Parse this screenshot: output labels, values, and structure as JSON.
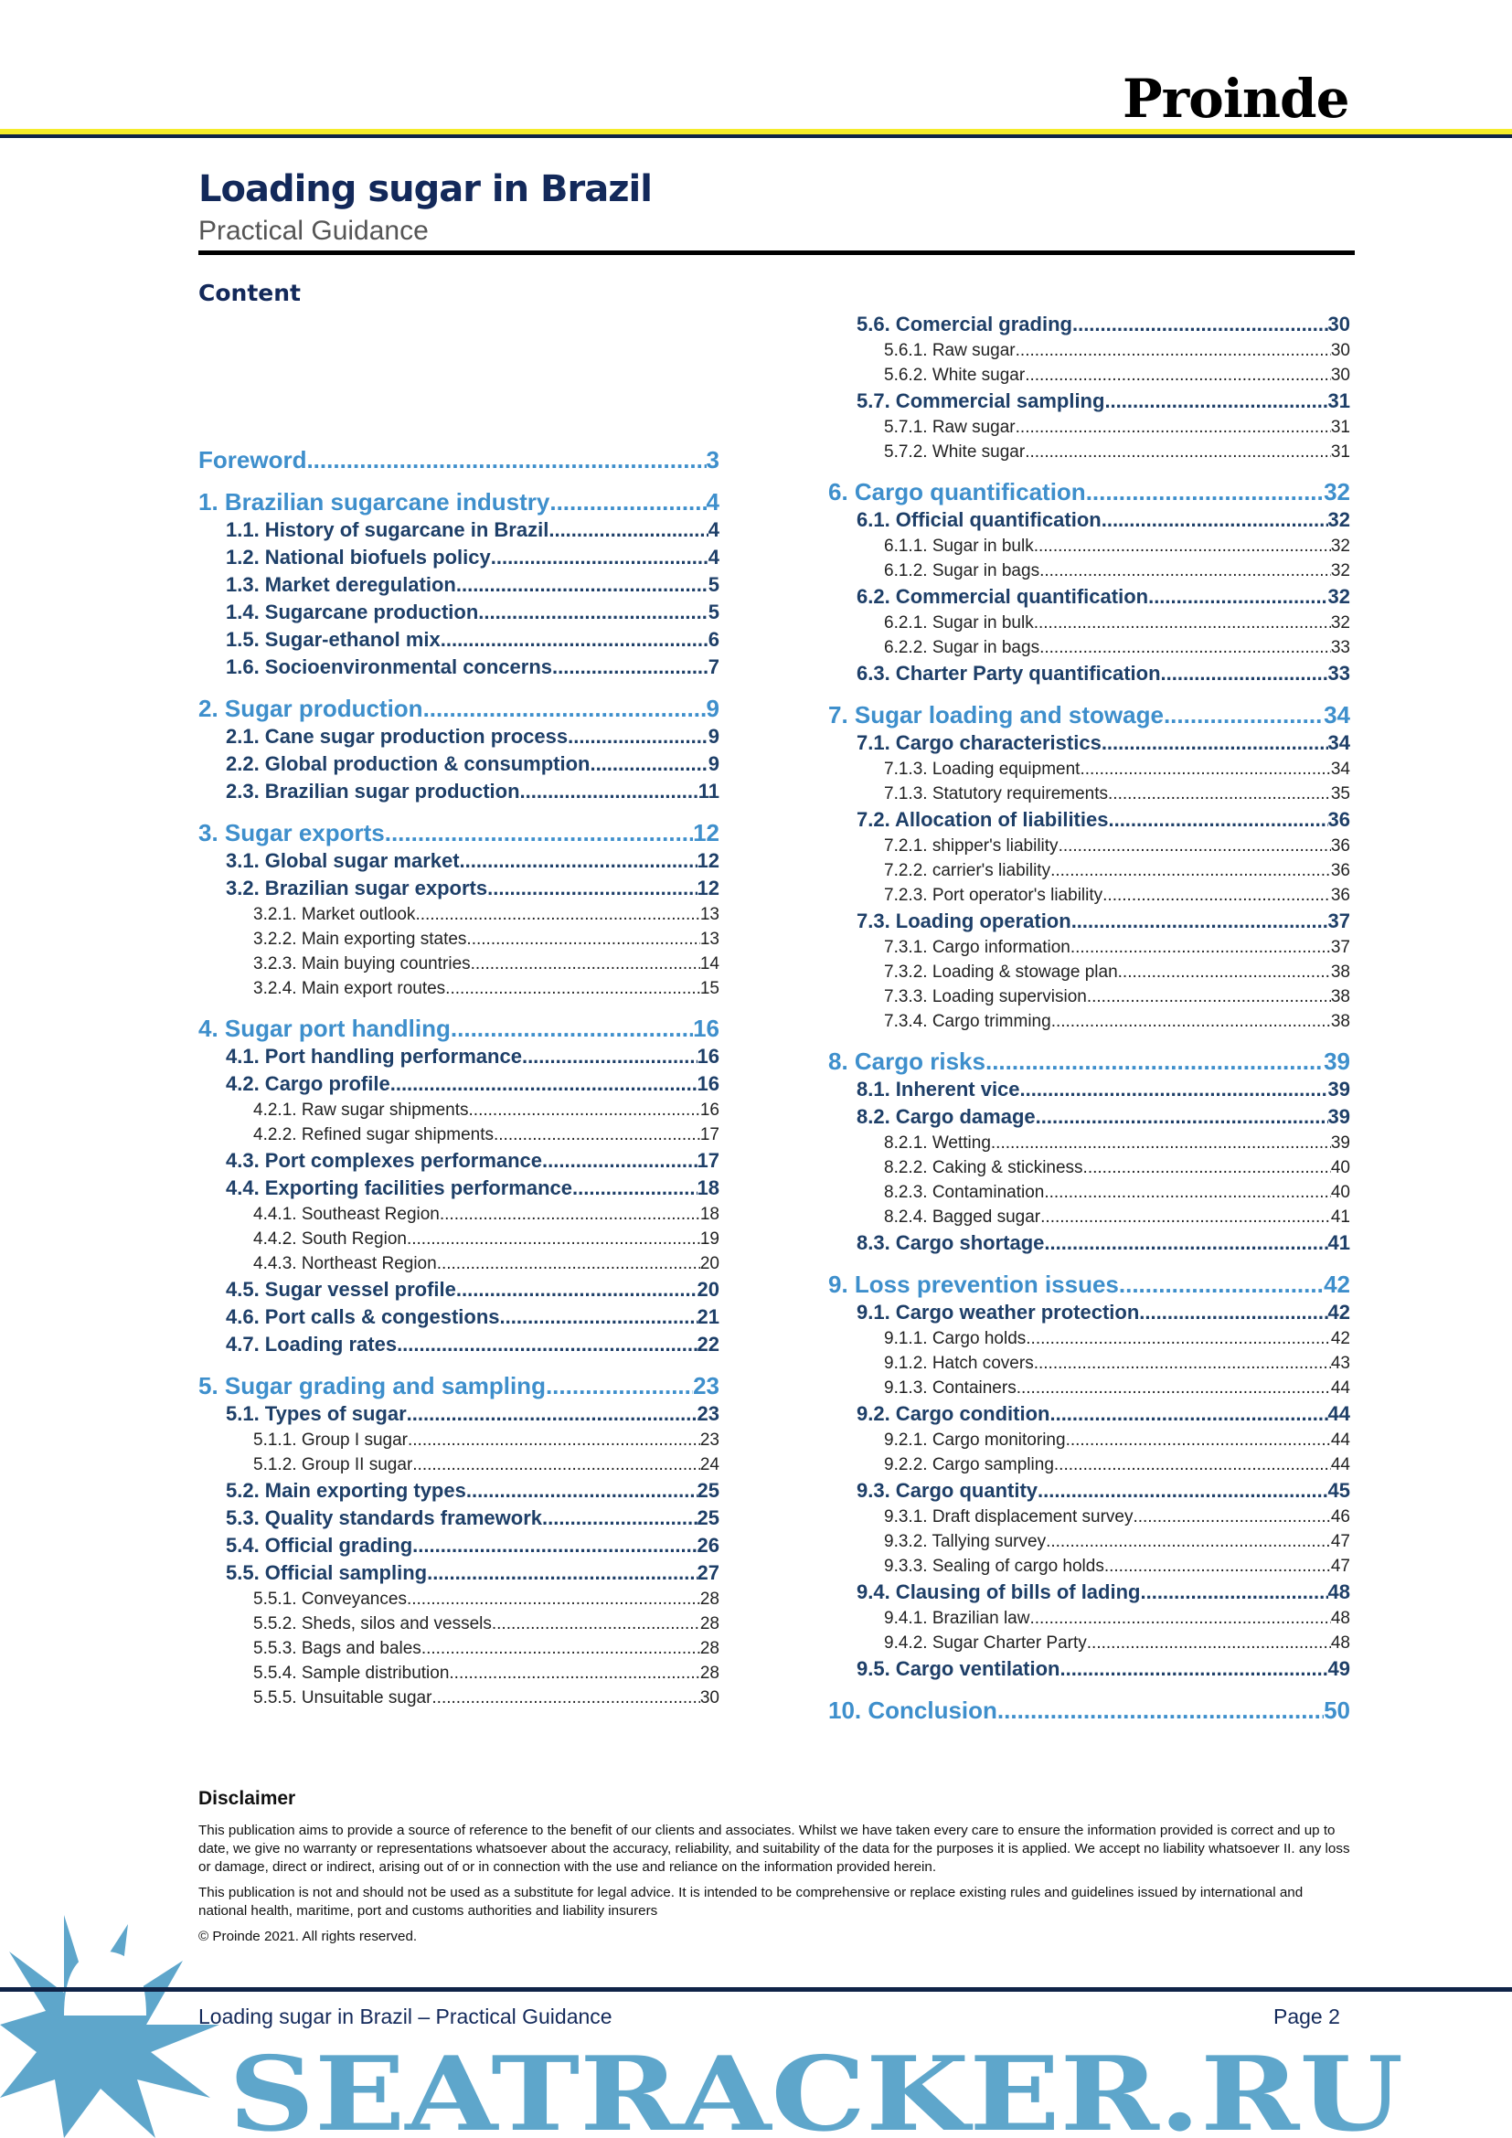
{
  "header": {
    "logo": "Proinde",
    "title": "Loading sugar in Brazil",
    "subtitle": "Practical Guidance",
    "section_heading": "Content"
  },
  "colors": {
    "accent_light_blue": "#3e8fcc",
    "navy": "#13295a",
    "yellow": "#f5ec2a",
    "watermark_blue": "#5ea6cb"
  },
  "toc_left": [
    {
      "level": 1,
      "label": "Foreword",
      "page": "3"
    },
    {
      "level": 1,
      "label": "1. Brazilian sugarcane industry",
      "page": "4",
      "gap": true
    },
    {
      "level": 2,
      "label": "1.1. History of sugarcane in Brazil",
      "page": "4"
    },
    {
      "level": 2,
      "label": "1.2. National biofuels policy",
      "page": "4"
    },
    {
      "level": 2,
      "label": "1.3. Market deregulation",
      "page": "5"
    },
    {
      "level": 2,
      "label": "1.4. Sugarcane production",
      "page": "5"
    },
    {
      "level": 2,
      "label": "1.5. Sugar-ethanol mix",
      "page": "6"
    },
    {
      "level": 2,
      "label": "1.6. Socioenvironmental concerns",
      "page": "7"
    },
    {
      "level": 1,
      "label": "2. Sugar production",
      "page": "9",
      "gap": true
    },
    {
      "level": 2,
      "label": "2.1. Cane sugar production process",
      "page": "9"
    },
    {
      "level": 2,
      "label": "2.2. Global production & consumption",
      "page": "9"
    },
    {
      "level": 2,
      "label": "2.3. Brazilian sugar production",
      "page": "11"
    },
    {
      "level": 1,
      "label": "3. Sugar exports",
      "page": "12",
      "gap": true
    },
    {
      "level": 2,
      "label": "3.1. Global sugar market",
      "page": "12"
    },
    {
      "level": 2,
      "label": "3.2. Brazilian sugar exports",
      "page": "12"
    },
    {
      "level": 3,
      "label": "3.2.1. Market outlook",
      "page": "13"
    },
    {
      "level": 3,
      "label": "3.2.2. Main exporting states",
      "page": "13"
    },
    {
      "level": 3,
      "label": "3.2.3. Main buying countries",
      "page": "14"
    },
    {
      "level": 3,
      "label": "3.2.4. Main export routes",
      "page": "15"
    },
    {
      "level": 1,
      "label": "4. Sugar port handling",
      "page": "16",
      "gap": true
    },
    {
      "level": 2,
      "label": "4.1. Port handling performance",
      "page": "16"
    },
    {
      "level": 2,
      "label": "4.2. Cargo profile",
      "page": "16"
    },
    {
      "level": 3,
      "label": "4.2.1. Raw sugar shipments",
      "page": "16"
    },
    {
      "level": 3,
      "label": "4.2.2. Refined sugar shipments",
      "page": "17"
    },
    {
      "level": 2,
      "label": "4.3. Port complexes performance",
      "page": "17"
    },
    {
      "level": 2,
      "label": "4.4. Exporting facilities performance",
      "page": "18"
    },
    {
      "level": 3,
      "label": "4.4.1. Southeast Region",
      "page": "18"
    },
    {
      "level": 3,
      "label": "4.4.2. South Region",
      "page": "19"
    },
    {
      "level": 3,
      "label": "4.4.3. Northeast Region",
      "page": "20"
    },
    {
      "level": 2,
      "label": "4.5. Sugar vessel profile",
      "page": "20"
    },
    {
      "level": 2,
      "label": "4.6. Port calls & congestions",
      "page": "21"
    },
    {
      "level": 2,
      "label": "4.7. Loading rates",
      "page": "22"
    },
    {
      "level": 1,
      "label": "5. Sugar grading and sampling",
      "page": "23",
      "gap": true
    },
    {
      "level": 2,
      "label": "5.1. Types of sugar",
      "page": "23"
    },
    {
      "level": 3,
      "label": "5.1.1. Group I sugar",
      "page": "23"
    },
    {
      "level": 3,
      "label": "5.1.2. Group II sugar",
      "page": "24"
    },
    {
      "level": 2,
      "label": "5.2. Main exporting types",
      "page": "25"
    },
    {
      "level": 2,
      "label": "5.3. Quality standards framework",
      "page": "25"
    },
    {
      "level": 2,
      "label": "5.4. Official grading",
      "page": "26"
    },
    {
      "level": 2,
      "label": "5.5. Official sampling",
      "page": "27"
    },
    {
      "level": 3,
      "label": "5.5.1. Conveyances",
      "page": "28"
    },
    {
      "level": 3,
      "label": "5.5.2. Sheds, silos and vessels",
      "page": "28"
    },
    {
      "level": 3,
      "label": "5.5.3. Bags and bales",
      "page": "28"
    },
    {
      "level": 3,
      "label": "5.5.4. Sample distribution",
      "page": "28"
    },
    {
      "level": 3,
      "label": "5.5.5. Unsuitable sugar",
      "page": "30"
    }
  ],
  "toc_right": [
    {
      "level": 2,
      "label": "5.6. Comercial grading",
      "page": "30"
    },
    {
      "level": 3,
      "label": "5.6.1. Raw sugar",
      "page": "30"
    },
    {
      "level": 3,
      "label": "5.6.2. White sugar",
      "page": "30"
    },
    {
      "level": 2,
      "label": "5.7. Commercial sampling",
      "page": "31"
    },
    {
      "level": 3,
      "label": "5.7.1. Raw sugar",
      "page": "31"
    },
    {
      "level": 3,
      "label": "5.7.2. White sugar",
      "page": "31"
    },
    {
      "level": 1,
      "label": "6. Cargo quantification",
      "page": "32",
      "gap": true
    },
    {
      "level": 2,
      "label": "6.1. Official quantification",
      "page": "32"
    },
    {
      "level": 3,
      "label": "6.1.1. Sugar in bulk",
      "page": "32"
    },
    {
      "level": 3,
      "label": "6.1.2. Sugar in bags",
      "page": "32"
    },
    {
      "level": 2,
      "label": "6.2. Commercial quantification",
      "page": "32"
    },
    {
      "level": 3,
      "label": "6.2.1. Sugar in bulk",
      "page": "32"
    },
    {
      "level": 3,
      "label": "6.2.2. Sugar in bags",
      "page": "33"
    },
    {
      "level": 2,
      "label": "6.3. Charter Party quantification",
      "page": "33"
    },
    {
      "level": 1,
      "label": "7. Sugar loading and stowage",
      "page": "34",
      "gap": true
    },
    {
      "level": 2,
      "label": "7.1. Cargo characteristics",
      "page": "34"
    },
    {
      "level": 3,
      "label": "7.1.3. Loading equipment",
      "page": "34"
    },
    {
      "level": 3,
      "label": "7.1.3. Statutory requirements",
      "page": "35"
    },
    {
      "level": 2,
      "label": "7.2. Allocation of liabilities",
      "page": "36"
    },
    {
      "level": 3,
      "label": "7.2.1. shipper's liability",
      "page": "36"
    },
    {
      "level": 3,
      "label": "7.2.2. carrier's liability",
      "page": "36"
    },
    {
      "level": 3,
      "label": "7.2.3. Port operator's liability",
      "page": "36"
    },
    {
      "level": 2,
      "label": "7.3. Loading operation",
      "page": "37"
    },
    {
      "level": 3,
      "label": "7.3.1. Cargo information",
      "page": "37"
    },
    {
      "level": 3,
      "label": "7.3.2. Loading & stowage plan",
      "page": "38"
    },
    {
      "level": 3,
      "label": "7.3.3. Loading supervision",
      "page": "38"
    },
    {
      "level": 3,
      "label": "7.3.4. Cargo trimming",
      "page": "38"
    },
    {
      "level": 1,
      "label": "8. Cargo risks",
      "page": "39",
      "gap": true
    },
    {
      "level": 2,
      "label": "8.1. Inherent vice",
      "page": "39"
    },
    {
      "level": 2,
      "label": "8.2. Cargo damage",
      "page": "39"
    },
    {
      "level": 3,
      "label": "8.2.1. Wetting",
      "page": "39"
    },
    {
      "level": 3,
      "label": "8.2.2. Caking & stickiness",
      "page": "40"
    },
    {
      "level": 3,
      "label": "8.2.3. Contamination",
      "page": "40"
    },
    {
      "level": 3,
      "label": "8.2.4. Bagged sugar",
      "page": "41"
    },
    {
      "level": 2,
      "label": "8.3. Cargo shortage",
      "page": "41"
    },
    {
      "level": 1,
      "label": "9. Loss prevention issues",
      "page": "42",
      "gap": true
    },
    {
      "level": 2,
      "label": "9.1. Cargo weather protection",
      "page": "42"
    },
    {
      "level": 3,
      "label": "9.1.1. Cargo holds",
      "page": "42"
    },
    {
      "level": 3,
      "label": "9.1.2. Hatch covers",
      "page": "43"
    },
    {
      "level": 3,
      "label": "9.1.3. Containers",
      "page": "44"
    },
    {
      "level": 2,
      "label": "9.2. Cargo condition",
      "page": "44"
    },
    {
      "level": 3,
      "label": "9.2.1. Cargo monitoring",
      "page": "44"
    },
    {
      "level": 3,
      "label": "9.2.2. Cargo sampling",
      "page": "44"
    },
    {
      "level": 2,
      "label": "9.3. Cargo quantity",
      "page": "45"
    },
    {
      "level": 3,
      "label": "9.3.1. Draft displacement survey",
      "page": "46"
    },
    {
      "level": 3,
      "label": "9.3.2. Tallying survey",
      "page": "47"
    },
    {
      "level": 3,
      "label": "9.3.3. Sealing of cargo holds",
      "page": "47"
    },
    {
      "level": 2,
      "label": "9.4. Clausing of bills of lading",
      "page": "48"
    },
    {
      "level": 3,
      "label": "9.4.1. Brazilian law",
      "page": "48"
    },
    {
      "level": 3,
      "label": "9.4.2. Sugar Charter Party",
      "page": "48"
    },
    {
      "level": 2,
      "label": "9.5. Cargo ventilation",
      "page": "49"
    },
    {
      "level": 1,
      "label": "10. Conclusion",
      "page": "50",
      "gap": true
    }
  ],
  "disclaimer": {
    "heading": "Disclaimer",
    "p1": "This publication aims to provide a source of reference to the benefit of our clients and associates. Whilst we have taken every care to ensure the information provided is correct and up to date, we give no warranty or representations whatsoever about the accuracy, reliability, and suitability of the data for the purposes it is applied. We accept no liability whatsoever II. any loss or damage, direct or indirect, arising out of or in connection with the use and reliance on the information provided herein.",
    "p2": "This publication is not and should not be used as a substitute for legal advice. It is intended to be comprehensive or replace existing rules and guidelines issued by international and national health, maritime, port and customs authorities and liability insurers",
    "copyright": "© Proinde 2021. All rights reserved."
  },
  "footer": {
    "left": "Loading sugar in Brazil – Practical Guidance",
    "right": "Page 2"
  },
  "watermark": {
    "text": "SEATRACKER.RU"
  }
}
